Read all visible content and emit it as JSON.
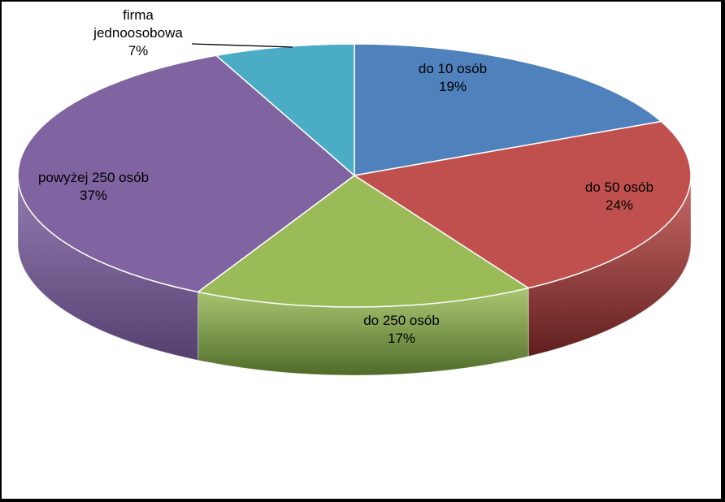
{
  "chart_data": {
    "type": "pie",
    "title": "",
    "style": "3d",
    "slices": [
      {
        "label": "do 10 osób",
        "value": 19,
        "value_label": "19%",
        "color": "#4F81BD",
        "side_color": "#2C4D75"
      },
      {
        "label": "do 50 osób",
        "value": 24,
        "value_label": "24%",
        "color": "#C0504D",
        "side_color": "#5E1E1D"
      },
      {
        "label": "do 250 osób",
        "value": 17,
        "value_label": "17%",
        "color": "#9BBB59",
        "side_color": "#4F6A28"
      },
      {
        "label": "powyżej 250 osób",
        "value": 37,
        "value_label": "37%",
        "color": "#8064A2",
        "side_color": "#54406F"
      },
      {
        "label": "firma jednoosobowa",
        "value": 7,
        "value_label": "7%",
        "color": "#4BACC6",
        "side_color": "#2A6F82"
      }
    ]
  }
}
